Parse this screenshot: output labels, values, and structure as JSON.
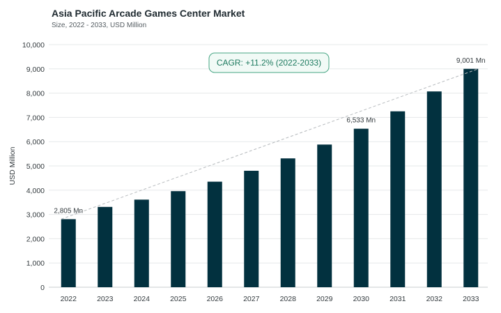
{
  "chart_data": {
    "type": "bar",
    "title": "Asia Pacific Arcade Games Center Market",
    "subtitle": "Size, 2022 - 2033, USD Million",
    "ylabel": "USD Million",
    "xlabel": "",
    "categories": [
      "2022",
      "2023",
      "2024",
      "2025",
      "2026",
      "2027",
      "2028",
      "2029",
      "2030",
      "2031",
      "2032",
      "2033"
    ],
    "values": [
      2805,
      3310,
      3610,
      3960,
      4350,
      4800,
      5310,
      5880,
      6533,
      7250,
      8070,
      9001
    ],
    "ylim": [
      0,
      10000
    ],
    "yticks": [
      "0",
      "1,000",
      "2,000",
      "3,000",
      "4,000",
      "5,000",
      "6,000",
      "7,000",
      "8,000",
      "9,000",
      "10,000"
    ],
    "data_labels": [
      {
        "index": 0,
        "text": "2,805 Mn"
      },
      {
        "index": 8,
        "text": "6,533 Mn"
      },
      {
        "index": 11,
        "text": "9,001 Mn"
      }
    ],
    "annotation": "CAGR: +11.2% (2022-2033)",
    "grid": true,
    "legend": "none",
    "bar_color": "#02313f",
    "accent_color": "#1d7a5f"
  }
}
